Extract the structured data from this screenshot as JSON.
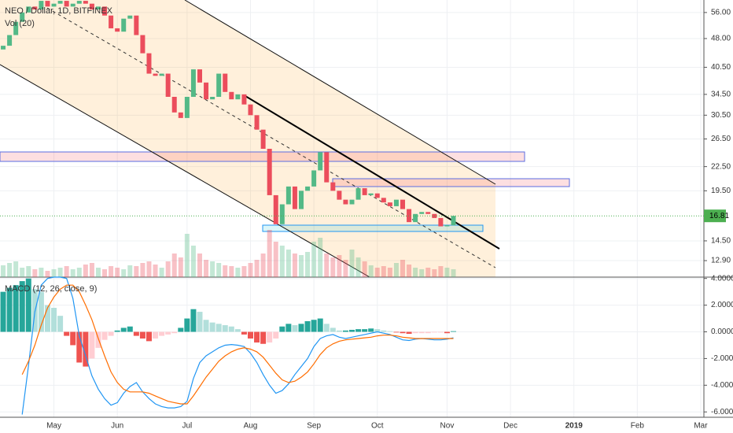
{
  "chart_data": [
    {
      "type": "candlestick",
      "title": "NEO / Dollar, 1D, BITFINEX",
      "log_scale": true,
      "ylim": [
        11.7,
        60.3
      ],
      "yticks": [
        {
          "value": 56,
          "label": "56.00"
        },
        {
          "value": 48,
          "label": "48.00"
        },
        {
          "value": 40.5,
          "label": "40.50"
        },
        {
          "value": 34.5,
          "label": "34.50"
        },
        {
          "value": 30.5,
          "label": "30.50"
        },
        {
          "value": 26.5,
          "label": "26.50"
        },
        {
          "value": 22.5,
          "label": "22.50"
        },
        {
          "value": 19.5,
          "label": "19.50"
        },
        {
          "value": 14.5,
          "label": "14.50"
        },
        {
          "value": 12.9,
          "label": "12.90"
        }
      ],
      "colors": {
        "up": "#53b987",
        "down": "#eb4d5c",
        "last": "#4caf50"
      },
      "open": [
        45,
        46,
        49,
        53,
        56,
        58,
        57,
        60,
        58,
        59,
        60,
        58,
        59,
        60,
        59,
        57,
        58,
        55,
        51,
        50,
        54,
        55,
        49,
        44,
        39,
        38.5,
        39,
        34,
        31,
        30,
        34,
        40,
        37,
        33.5,
        34,
        39,
        35,
        33.5,
        34.5,
        32.5,
        30.5,
        28,
        25,
        19,
        16,
        18,
        20,
        17.5,
        19.5,
        20,
        22,
        24.5,
        20.5,
        19.5,
        18.5,
        18,
        18.5,
        19.8,
        19,
        19.2,
        18.7,
        18.2,
        17.8,
        18.5,
        17.5,
        16.2,
        17,
        17.2,
        17,
        16.6,
        15.8,
        15.9,
        null,
        null,
        null,
        null,
        null,
        null,
        null,
        null,
        null,
        null,
        null,
        null,
        null,
        null,
        null,
        null,
        null,
        null,
        null,
        null,
        null,
        null,
        null,
        null,
        null,
        null,
        null,
        null,
        null,
        null,
        null,
        null,
        null,
        null,
        null,
        null,
        null,
        null,
        null
      ],
      "close": [
        46,
        49,
        53,
        56,
        58,
        57,
        60,
        58,
        59,
        60,
        58,
        59,
        60,
        59,
        57,
        58,
        55,
        51,
        50,
        54,
        55,
        49,
        44,
        39,
        38.5,
        39,
        34,
        31,
        30,
        34,
        40,
        37,
        33.5,
        34,
        39,
        35,
        33.5,
        34.5,
        32.5,
        30.5,
        28,
        25,
        19,
        16,
        18,
        20,
        17.5,
        19.5,
        20,
        22,
        24.5,
        20.5,
        19.5,
        18.5,
        18,
        18.5,
        19.8,
        19,
        19.2,
        18.7,
        18.2,
        17.8,
        18.5,
        17.5,
        16.2,
        17,
        17.2,
        17,
        16.6,
        15.8,
        15.9,
        16.81,
        null,
        null,
        null,
        null,
        null,
        null,
        null,
        null,
        null,
        null,
        null,
        null,
        null,
        null,
        null,
        null,
        null,
        null,
        null,
        null,
        null,
        null,
        null,
        null,
        null,
        null,
        null,
        null,
        null,
        null,
        null,
        null,
        null,
        null,
        null,
        null,
        null,
        null,
        null
      ],
      "volume": {
        "name": "Vol (20)",
        "ylim": [
          0,
          100
        ],
        "values": [
          15,
          18,
          20,
          12,
          14,
          10,
          12,
          8,
          10,
          12,
          14,
          10,
          12,
          16,
          18,
          12,
          10,
          14,
          12,
          10,
          15,
          14,
          18,
          20,
          16,
          12,
          20,
          30,
          25,
          55,
          40,
          30,
          22,
          20,
          18,
          15,
          14,
          12,
          14,
          18,
          22,
          30,
          60,
          45,
          40,
          35,
          30,
          28,
          32,
          45,
          50,
          30,
          25,
          28,
          22,
          35,
          25,
          20,
          15,
          12,
          14,
          12,
          18,
          22,
          16,
          12,
          10,
          12,
          10,
          14,
          12,
          10,
          null,
          null,
          null,
          null,
          null,
          null,
          null,
          null,
          null,
          null,
          null,
          null,
          null,
          null,
          null,
          null,
          null,
          null,
          null,
          null,
          null,
          null,
          null,
          null,
          null,
          null,
          null,
          null,
          null,
          null,
          null,
          null,
          null,
          null,
          null,
          null,
          null,
          null,
          null
        ]
      }
    },
    {
      "type": "macd",
      "title": "MACD (12, 26, close, 9)",
      "categories": [
        null,
        null,
        null,
        null,
        null,
        null,
        null,
        null,
        "May",
        null,
        null,
        null,
        null,
        null,
        null,
        null,
        null,
        null,
        "Jun",
        null,
        null,
        null,
        null,
        null,
        null,
        null,
        null,
        null,
        null,
        "Jul",
        null,
        null,
        null,
        null,
        null,
        null,
        null,
        null,
        null,
        "Aug",
        null,
        null,
        null,
        null,
        null,
        null,
        null,
        null,
        null,
        "Sep",
        null,
        null,
        null,
        null,
        null,
        null,
        null,
        null,
        null,
        "Oct",
        null,
        null,
        null,
        null,
        null,
        null,
        null,
        null,
        null,
        null,
        "Nov",
        null,
        null,
        null,
        null,
        null,
        null,
        null,
        null,
        null,
        "Dec",
        null,
        null,
        null,
        null,
        null,
        null,
        null,
        null,
        null,
        "2019",
        null,
        null,
        null,
        null,
        null,
        null,
        null,
        null,
        null,
        "Feb",
        null,
        null,
        null,
        null,
        null,
        null,
        null,
        null,
        null,
        "Mar"
      ],
      "ylim": [
        -6.4,
        4.1
      ],
      "yticks": [
        {
          "value": 4,
          "label": "4.0000"
        },
        {
          "value": 2,
          "label": "2.0000"
        },
        {
          "value": 0,
          "label": "0.0000"
        },
        {
          "value": -2,
          "label": "-2.0000"
        },
        {
          "value": -4,
          "label": "-4.0000"
        },
        {
          "value": -6,
          "label": "-6.0000"
        }
      ],
      "histogram": {
        "colors": {
          "up_strong": "#26a69a",
          "up_weak": "#b2dfdb",
          "down_strong": "#ef5350",
          "down_weak": "#ffcdd2"
        },
        "values": [
          3,
          3.3,
          3.5,
          3.8,
          4,
          3.2,
          3,
          2,
          1.8,
          1.2,
          -0.3,
          -1,
          -2.3,
          -2.6,
          -2,
          -1.2,
          -0.6,
          -0.3,
          0.1,
          0.3,
          0.4,
          -0.3,
          -0.5,
          -0.7,
          -0.5,
          -0.3,
          -0.2,
          -0.1,
          0.3,
          1,
          1.7,
          1.5,
          0.9,
          0.7,
          0.6,
          0.5,
          0.4,
          0.2,
          -0.2,
          -0.5,
          -0.8,
          -0.9,
          -0.8,
          -0.5,
          0.4,
          0.6,
          0.5,
          0.6,
          0.8,
          0.9,
          1,
          0.6,
          0.3,
          0.1,
          0.1,
          0.15,
          0.2,
          0.2,
          0.25,
          0.2,
          0.1,
          0.05,
          -0.05,
          -0.1,
          -0.15,
          -0.1,
          -0.1,
          -0.1,
          -0.05,
          -0.05,
          -0.1,
          0.05,
          null,
          null,
          null,
          null,
          null,
          null,
          null,
          null,
          null,
          null,
          null,
          null,
          null,
          null,
          null,
          null,
          null,
          null,
          null,
          null,
          null,
          null,
          null,
          null,
          null,
          null,
          null,
          null,
          null,
          null,
          null,
          null,
          null,
          null,
          null,
          null,
          null,
          null,
          null
        ]
      },
      "macd": {
        "color": "#2196f3",
        "values": [
          null,
          null,
          null,
          -6.2,
          -2.5,
          1.5,
          3.5,
          4,
          4.1,
          4.1,
          4,
          2.5,
          -0.3,
          -1.8,
          -3.3,
          -4.3,
          -5,
          -5.5,
          -5.3,
          -4.6,
          -4.1,
          -3.8,
          -4.5,
          -5,
          -5.4,
          -5.6,
          -5.7,
          -5.7,
          -5.6,
          -5.2,
          -3.5,
          -2.3,
          -1.8,
          -1.5,
          -1.2,
          -1,
          -0.95,
          -1,
          -1.1,
          -1.6,
          -2.3,
          -3.2,
          -4,
          -4.6,
          -4.4,
          -3.9,
          -3.2,
          -2.6,
          -2,
          -1.1,
          -0.5,
          -0.3,
          -0.2,
          -0.4,
          -0.5,
          -0.4,
          -0.3,
          -0.2,
          -0.1,
          0,
          -0.1,
          -0.2,
          -0.4,
          -0.6,
          -0.65,
          -0.55,
          -0.5,
          -0.55,
          -0.6,
          -0.6,
          -0.55,
          -0.45,
          null,
          null,
          null,
          null,
          null,
          null,
          null,
          null,
          null,
          null,
          null,
          null,
          null,
          null,
          null,
          null,
          null,
          null,
          null,
          null,
          null,
          null,
          null,
          null,
          null,
          null,
          null,
          null,
          null,
          null,
          null,
          null,
          null,
          null,
          null,
          null,
          null,
          null,
          null
        ]
      },
      "signal": {
        "color": "#ff6d00",
        "values": [
          null,
          null,
          null,
          -3.2,
          -2.2,
          -1,
          0.5,
          1.8,
          2.6,
          3.2,
          3.5,
          3.5,
          3,
          2,
          0.9,
          -0.5,
          -1.8,
          -3,
          -3.8,
          -4.3,
          -4.5,
          -4.5,
          -4.5,
          -4.6,
          -4.8,
          -5,
          -5.2,
          -5.3,
          -5.4,
          -5.4,
          -4.8,
          -4.1,
          -3.4,
          -2.8,
          -2.2,
          -1.8,
          -1.5,
          -1.3,
          -1.2,
          -1.3,
          -1.5,
          -1.9,
          -2.5,
          -3.1,
          -3.6,
          -3.8,
          -3.7,
          -3.4,
          -3,
          -2.4,
          -1.7,
          -1.2,
          -0.9,
          -0.7,
          -0.6,
          -0.55,
          -0.5,
          -0.45,
          -0.4,
          -0.3,
          -0.25,
          -0.25,
          -0.3,
          -0.4,
          -0.45,
          -0.5,
          -0.5,
          -0.5,
          -0.5,
          -0.5,
          -0.5,
          -0.5,
          null,
          null,
          null,
          null,
          null,
          null,
          null,
          null,
          null,
          null,
          null,
          null,
          null,
          null,
          null,
          null,
          null,
          null,
          null,
          null,
          null,
          null,
          null,
          null,
          null,
          null,
          null,
          null,
          null,
          null,
          null,
          null,
          null,
          null,
          null,
          null,
          null,
          null,
          null
        ]
      }
    }
  ]
}
